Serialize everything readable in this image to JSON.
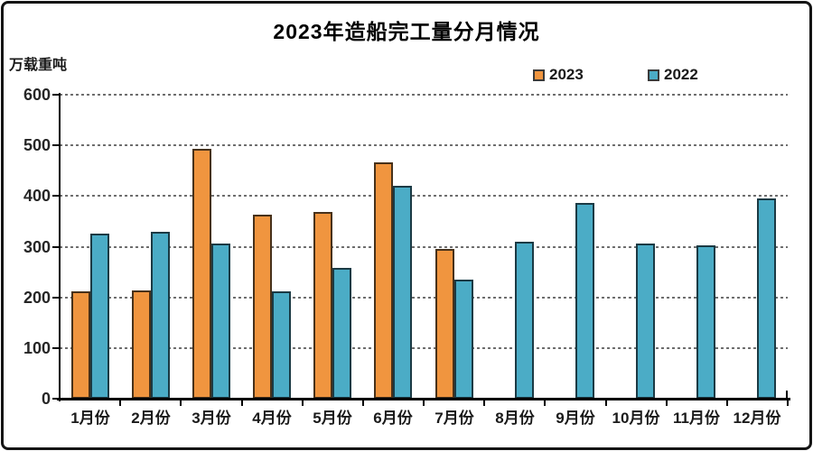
{
  "frame": {
    "background": "#ffffff",
    "border_color": "#141414"
  },
  "chart_data": {
    "type": "bar",
    "title": "2023年造船完工量分月情况",
    "unit_label": "万载重吨",
    "categories": [
      "1月份",
      "2月份",
      "3月份",
      "4月份",
      "5月份",
      "6月份",
      "7月份",
      "8月份",
      "9月份",
      "10月份",
      "11月份",
      "12月份"
    ],
    "series": [
      {
        "name": "2023",
        "color": "#F0953F",
        "border_color": "#47311A",
        "values": [
          211,
          214,
          494,
          364,
          369,
          466,
          295,
          null,
          null,
          null,
          null,
          null
        ]
      },
      {
        "name": "2022",
        "color": "#4BACC6",
        "border_color": "#1B3A44",
        "values": [
          326,
          330,
          307,
          211,
          258,
          421,
          235,
          310,
          387,
          307,
          302,
          396
        ]
      }
    ],
    "y_axis": {
      "min": 0,
      "max": 600,
      "tick_interval": 100,
      "tick_labels": [
        "0",
        "100",
        "200",
        "300",
        "400",
        "500",
        "600"
      ]
    },
    "grid": {
      "horizontal": true,
      "style": "dashed",
      "color": "#6E6E6E"
    },
    "legend_position": "top-right",
    "axis_color": "#000000",
    "text_color": "#1a1a1a"
  }
}
